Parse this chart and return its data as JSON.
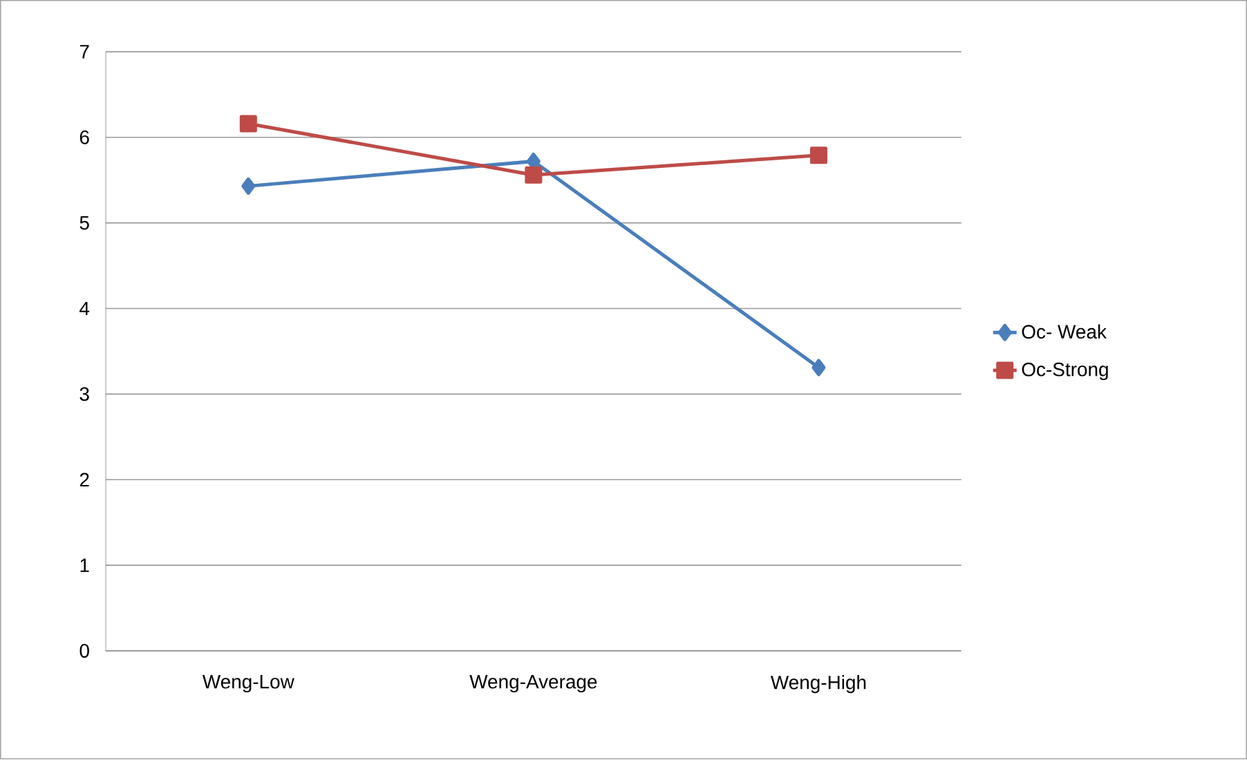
{
  "chart_data": {
    "type": "line",
    "categories": [
      "Weng-Low",
      "Weng-Average",
      "Weng-High"
    ],
    "series": [
      {
        "name": "Oc- Weak",
        "color": "#4a7ebb",
        "values": [
          5.43,
          5.72,
          3.31
        ],
        "marker": "diamond"
      },
      {
        "name": "Oc-Strong",
        "color": "#be4b48",
        "values": [
          6.16,
          5.56,
          5.79
        ],
        "marker": "square"
      }
    ],
    "ylim": [
      0,
      7
    ],
    "yticks": [
      0,
      1,
      2,
      3,
      4,
      5,
      6,
      7
    ],
    "grid": "y",
    "legend": "right",
    "line_style": "solid"
  }
}
